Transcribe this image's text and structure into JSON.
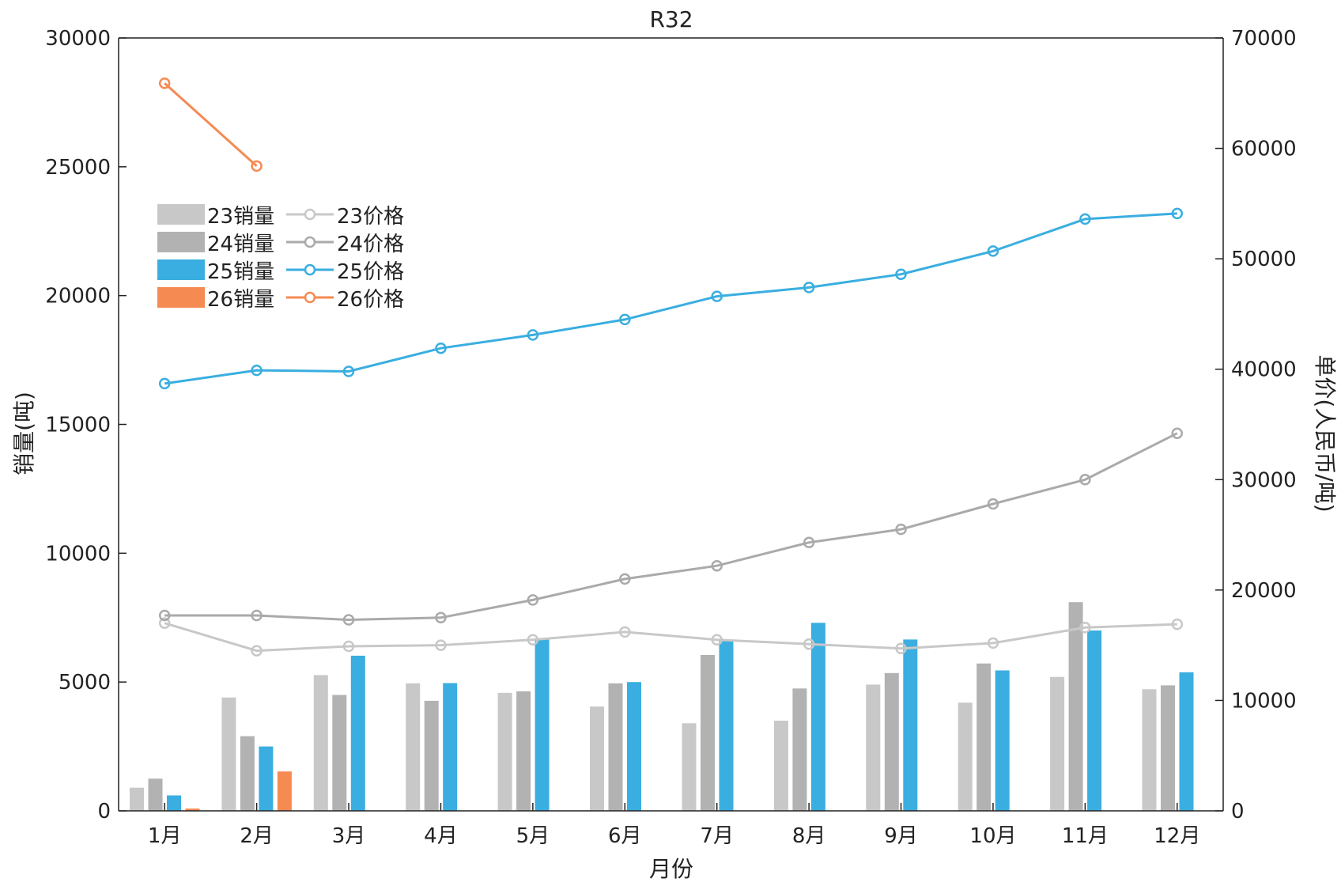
{
  "chart_data": {
    "type": "bar+line",
    "title": "R32",
    "xlabel": "月份",
    "ylabel_left": "销量(吨)",
    "ylabel_right": "单价(人民币/吨)",
    "categories": [
      "1月",
      "2月",
      "3月",
      "4月",
      "5月",
      "6月",
      "7月",
      "8月",
      "9月",
      "10月",
      "11月",
      "12月"
    ],
    "ylim_left": [
      0,
      30000
    ],
    "ylim_right": [
      0,
      70000
    ],
    "yticks_left": [
      0,
      5000,
      10000,
      15000,
      20000,
      25000,
      30000
    ],
    "yticks_right": [
      0,
      10000,
      20000,
      30000,
      40000,
      50000,
      60000,
      70000
    ],
    "grid": false,
    "legend_position": "upper-left",
    "bar_series": [
      {
        "name": "23销量",
        "color": "#c8c8c8",
        "values": [
          900,
          4400,
          5270,
          4950,
          4580,
          4050,
          3400,
          3500,
          4900,
          4200,
          5200,
          4720
        ]
      },
      {
        "name": "24销量",
        "color": "#b2b2b2",
        "values": [
          1250,
          2900,
          4500,
          4270,
          4640,
          4950,
          6050,
          4750,
          5350,
          5720,
          8100,
          4870
        ]
      },
      {
        "name": "25销量",
        "color": "#3aaee0",
        "values": [
          600,
          2500,
          6020,
          4960,
          6700,
          5000,
          6600,
          7300,
          6650,
          5450,
          7000,
          5380
        ]
      },
      {
        "name": "26销量",
        "color": "#f58a53",
        "values": [
          90,
          1530,
          null,
          null,
          null,
          null,
          null,
          null,
          null,
          null,
          null,
          null
        ]
      }
    ],
    "line_series": [
      {
        "name": "23价格",
        "color": "#c8c8c8",
        "values": [
          17000,
          14500,
          14900,
          15000,
          15500,
          16200,
          15500,
          15100,
          14700,
          15200,
          16600,
          16900
        ]
      },
      {
        "name": "24价格",
        "color": "#aaaaaa",
        "values": [
          17700,
          17700,
          17300,
          17500,
          19100,
          21000,
          22200,
          24300,
          25500,
          27800,
          30000,
          34200
        ]
      },
      {
        "name": "25价格",
        "color": "#3aaee0",
        "values": [
          38700,
          39900,
          39800,
          41900,
          43100,
          44500,
          46600,
          47400,
          48600,
          50700,
          53600,
          54100
        ]
      },
      {
        "name": "26价格",
        "color": "#f58a53",
        "values": [
          65900,
          58400,
          null,
          null,
          null,
          null,
          null,
          null,
          null,
          null,
          null,
          null
        ]
      }
    ]
  }
}
